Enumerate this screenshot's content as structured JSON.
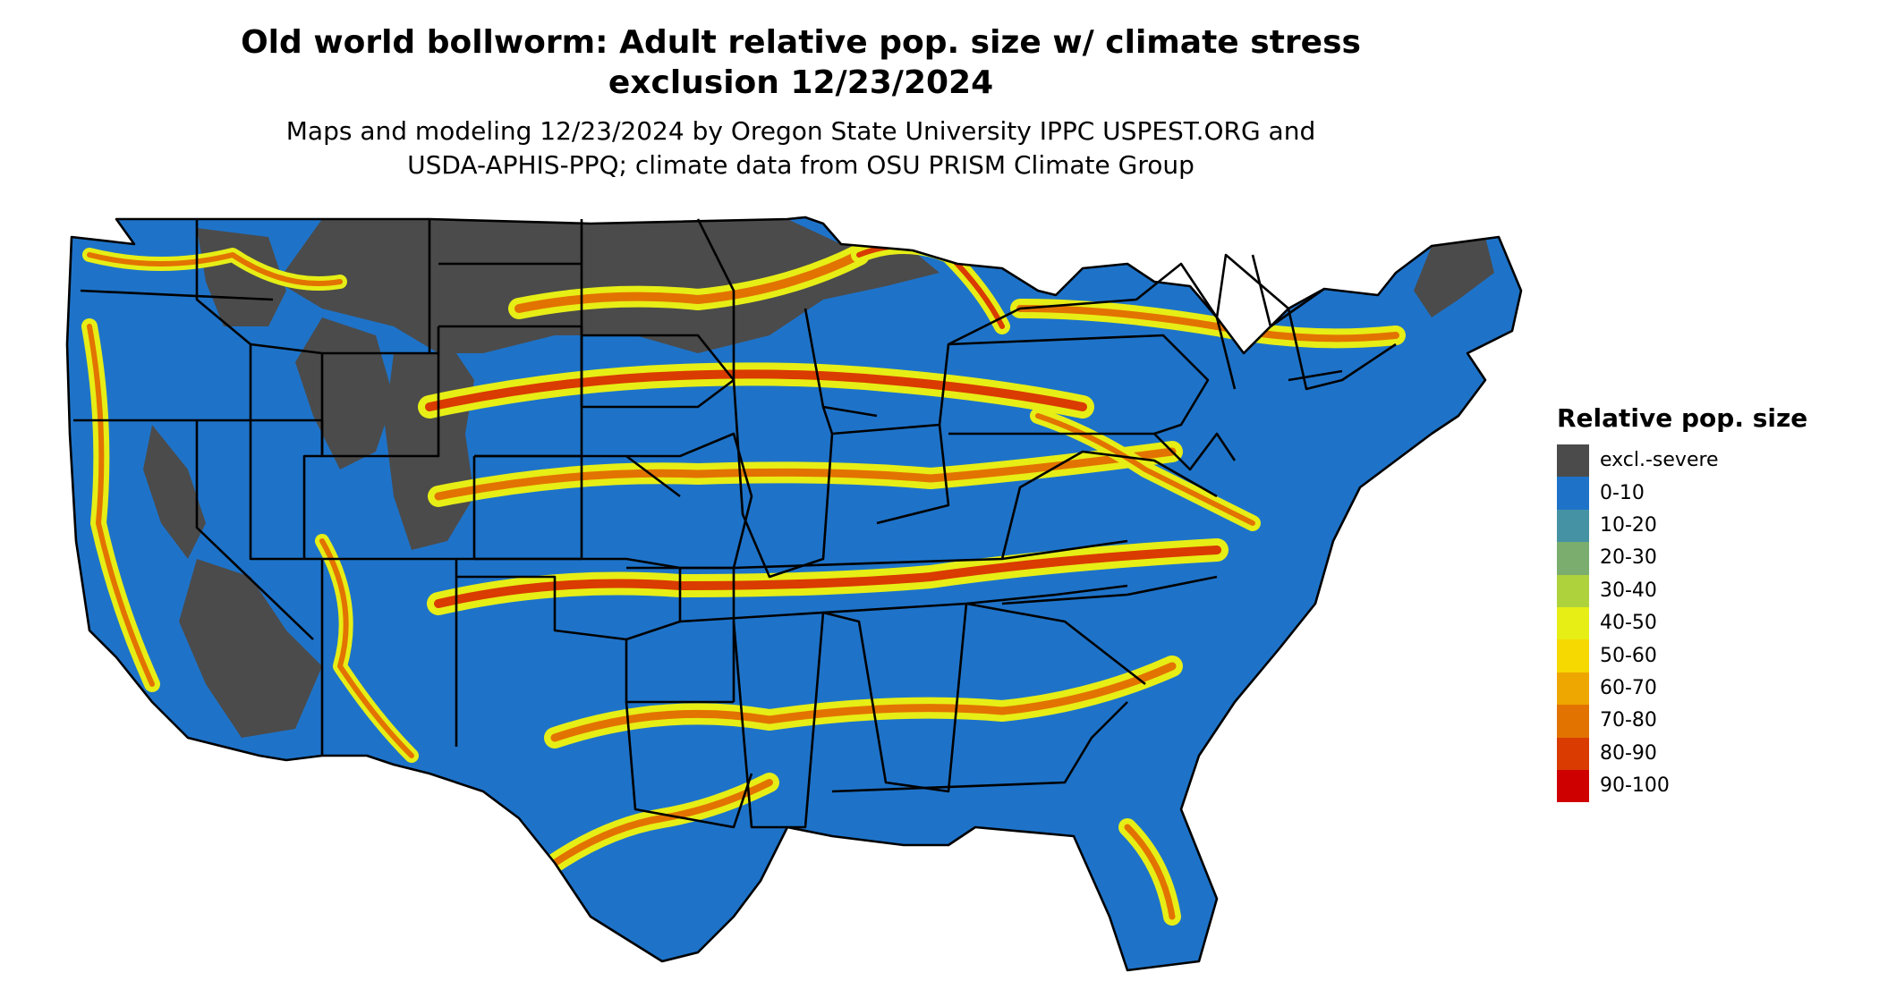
{
  "title": {
    "line1": "Old world bollworm: Adult relative pop. size w/ climate stress",
    "line2": "exclusion 12/23/2024"
  },
  "subtitle": {
    "line1": "Maps and modeling 12/23/2024 by Oregon State University IPPC USPEST.ORG and",
    "line2": "USDA-APHIS-PPQ; climate data from OSU PRISM Climate Group"
  },
  "legend": {
    "title": "Relative pop. size",
    "items": [
      {
        "label": "excl.-severe",
        "color": "#4b4b4b"
      },
      {
        "label": "0-10",
        "color": "#1e73c9"
      },
      {
        "label": "10-20",
        "color": "#4592a4"
      },
      {
        "label": "20-30",
        "color": "#7aad6e"
      },
      {
        "label": "30-40",
        "color": "#aed23c"
      },
      {
        "label": "40-50",
        "color": "#e6ee16"
      },
      {
        "label": "50-60",
        "color": "#f6d900"
      },
      {
        "label": "60-70",
        "color": "#eea700"
      },
      {
        "label": "70-80",
        "color": "#e27300"
      },
      {
        "label": "80-90",
        "color": "#d93b00"
      },
      {
        "label": "90-100",
        "color": "#cf0000"
      }
    ]
  },
  "map": {
    "region": "Contiguous United States",
    "excluded_color": "#4b4b4b",
    "base_color": "#1e73c9",
    "border_color": "#000000"
  }
}
